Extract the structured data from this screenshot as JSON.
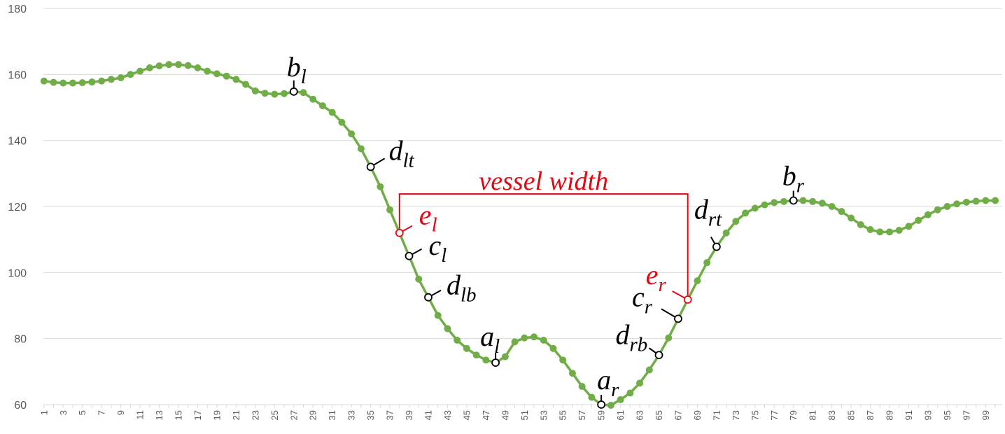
{
  "chart_data": {
    "type": "line",
    "title": "",
    "xlabel": "",
    "ylabel": "",
    "ylim": [
      60,
      180
    ],
    "xlim": [
      1,
      100
    ],
    "grid": true,
    "legend": "none",
    "y_ticks": [
      "60",
      "80",
      "100",
      "120",
      "140",
      "160",
      "180"
    ],
    "x_ticks": [
      "1",
      "3",
      "5",
      "7",
      "9",
      "11",
      "13",
      "15",
      "17",
      "19",
      "21",
      "23",
      "25",
      "27",
      "29",
      "31",
      "33",
      "35",
      "37",
      "39",
      "41",
      "43",
      "45",
      "47",
      "49",
      "51",
      "53",
      "55",
      "57",
      "59",
      "61",
      "63",
      "65",
      "67",
      "69",
      "71",
      "73",
      "75",
      "77",
      "79",
      "81",
      "83",
      "85",
      "87",
      "89",
      "91",
      "93",
      "95",
      "97",
      "99"
    ],
    "series_color": "#70ad47",
    "series": [
      {
        "values": [
          158,
          157.6,
          157.4,
          157.4,
          157.5,
          157.7,
          158,
          158.5,
          159,
          160,
          161,
          162,
          162.6,
          163,
          163,
          162.7,
          162,
          161,
          160.2,
          159.5,
          158.5,
          157,
          155,
          154.3,
          154,
          154.2,
          154.8,
          154.5,
          152.5,
          150.5,
          148.5,
          145.5,
          142,
          137.5,
          132,
          126,
          119,
          112,
          105,
          98,
          92.5,
          87,
          83,
          79.5,
          77,
          75,
          73.5,
          72.7,
          74.5,
          79,
          80.2,
          80.5,
          79.5,
          77,
          73.5,
          69.5,
          65.5,
          62.2,
          60,
          59.8,
          61.5,
          63.5,
          66.5,
          70.5,
          75,
          80.2,
          86,
          91.8,
          97.5,
          103,
          107.8,
          112,
          115.5,
          118,
          119.5,
          120.5,
          121.2,
          121.5,
          121.8,
          121.8,
          121.5,
          121,
          120,
          118.5,
          116.5,
          114.5,
          113,
          112.3,
          112.3,
          112.8,
          114,
          115.8,
          117.5,
          119,
          120,
          120.8,
          121.3,
          121.6,
          121.8,
          121.8
        ]
      }
    ],
    "annotations": [
      {
        "base": "b",
        "sub": "l",
        "x": 27,
        "color": "#000000"
      },
      {
        "base": "d",
        "sub": "lt",
        "x": 35,
        "color": "#000000"
      },
      {
        "base": "e",
        "sub": "l",
        "x": 38,
        "color": "#e30613"
      },
      {
        "base": "c",
        "sub": "l",
        "x": 39,
        "color": "#000000"
      },
      {
        "base": "d",
        "sub": "lb",
        "x": 41,
        "color": "#000000"
      },
      {
        "base": "a",
        "sub": "l",
        "x": 48,
        "color": "#000000"
      },
      {
        "base": "a",
        "sub": "r",
        "x": 59,
        "color": "#000000"
      },
      {
        "base": "d",
        "sub": "rb",
        "x": 65,
        "color": "#000000"
      },
      {
        "base": "c",
        "sub": "r",
        "x": 67,
        "color": "#000000"
      },
      {
        "base": "e",
        "sub": "r",
        "x": 68,
        "color": "#e30613"
      },
      {
        "base": "d",
        "sub": "rt",
        "x": 71,
        "color": "#000000"
      },
      {
        "base": "b",
        "sub": "r",
        "x": 79,
        "color": "#000000"
      }
    ],
    "vessel_width": {
      "label": "vessel width",
      "from_x": 38,
      "to_x": 68,
      "y": 123.8,
      "color": "#e30613"
    }
  }
}
